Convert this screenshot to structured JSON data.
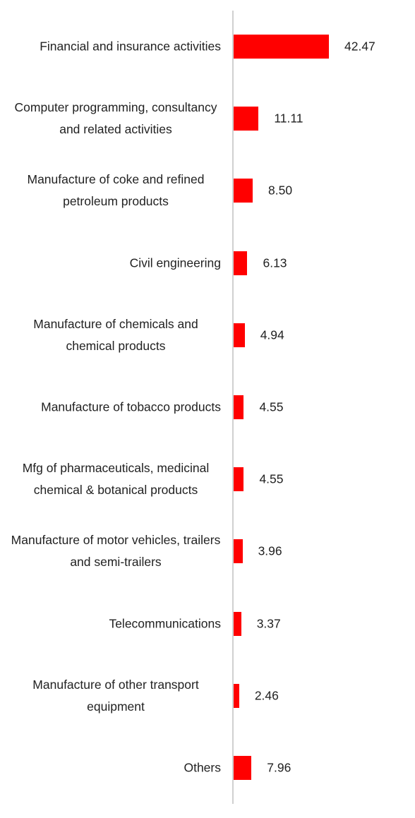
{
  "chart_data": {
    "type": "bar",
    "orientation": "horizontal",
    "color": "#ff0000",
    "categories": [
      "Financial and insurance activities",
      "Computer programming, consultancy and related activities",
      "Manufacture of coke and refined petroleum products",
      "Civil engineering",
      "Manufacture of chemicals and chemical products",
      "Manufacture of tobacco products",
      "Mfg of pharmaceuticals, medicinal chemical & botanical products",
      "Manufacture of motor vehicles, trailers and semi-trailers",
      "Telecommunications",
      "Manufacture of other transport equipment",
      "Others"
    ],
    "values": [
      42.47,
      11.11,
      8.5,
      6.13,
      4.94,
      4.55,
      4.55,
      3.96,
      3.37,
      2.46,
      7.96
    ],
    "value_labels": [
      "42.47",
      "11.11",
      "8.50",
      "6.13",
      "4.94",
      "4.55",
      "4.55",
      "3.96",
      "3.37",
      "2.46",
      "7.96"
    ]
  }
}
